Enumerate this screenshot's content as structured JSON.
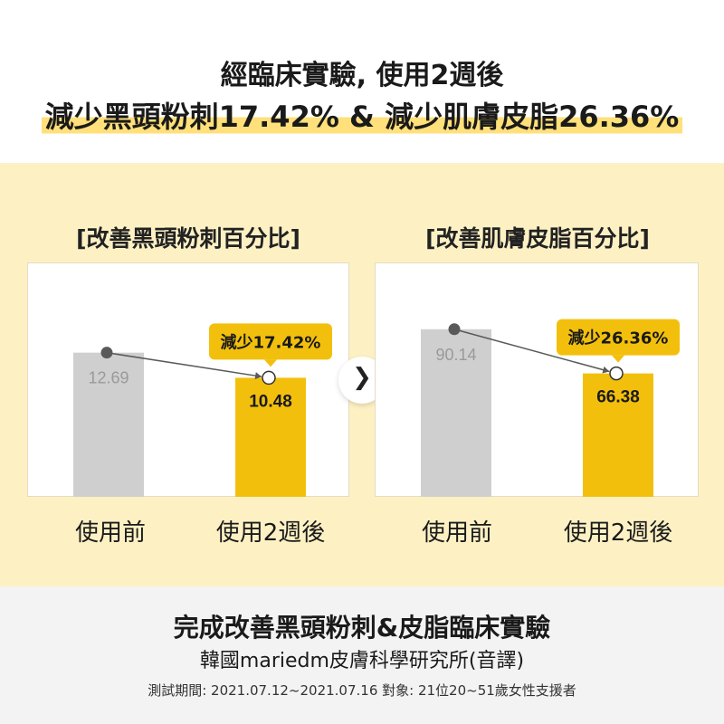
{
  "header": {
    "line1": "經臨床實驗, 使用2週後",
    "line2": "減少黑頭粉刺17.42% & 減少肌膚皮脂26.36%"
  },
  "colors": {
    "before_bar": "#cfcfcf",
    "after_bar": "#f2c00c",
    "panel_bg": "#fdf1c4",
    "marker": "#595959"
  },
  "chart_data": [
    {
      "type": "bar",
      "title": "[改善黑頭粉刺百分比]",
      "categories": [
        "使用前",
        "使用2週後"
      ],
      "values": [
        12.69,
        10.48
      ],
      "value_labels": [
        "12.69",
        "10.48"
      ],
      "annotation": "減少17.42%",
      "ylim": [
        0,
        18
      ],
      "grid": false
    },
    {
      "type": "bar",
      "title": "[改善肌膚皮脂百分比]",
      "categories": [
        "使用前",
        "使用2週後"
      ],
      "values": [
        90.14,
        66.38
      ],
      "value_labels": [
        "90.14",
        "66.38"
      ],
      "annotation": "減少26.36%",
      "ylim": [
        0,
        110
      ],
      "grid": false
    }
  ],
  "arrow_icon": "chevron-right-icon",
  "footer": {
    "title": "完成改善黑頭粉刺&皮脂臨床實驗",
    "source": "韓國mariedm皮膚科學研究所(音譯)",
    "note": "測試期間: 2021.07.12~2021.07.16 對象: 21位20~51歲女性支援者"
  }
}
